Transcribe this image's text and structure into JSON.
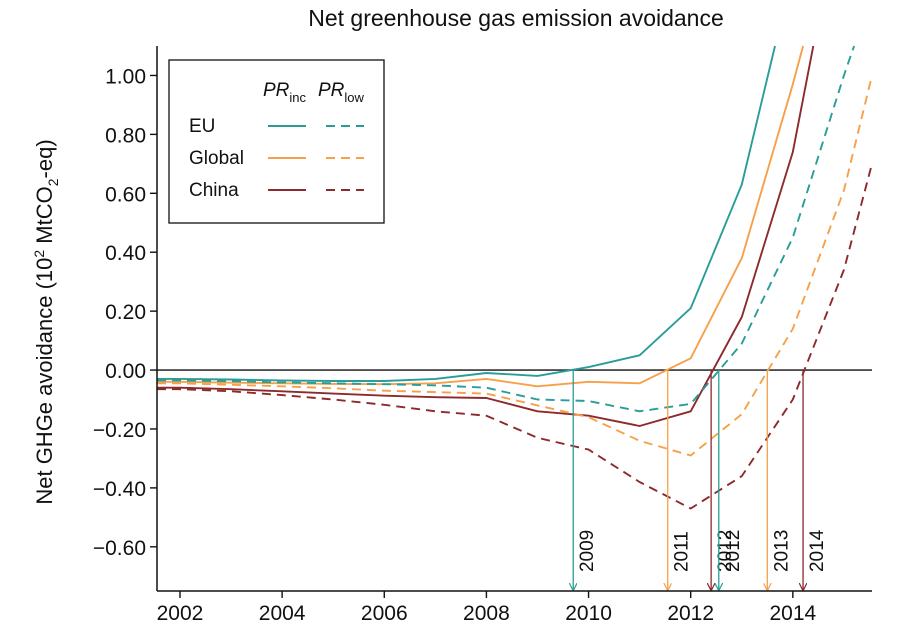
{
  "chart_data": {
    "type": "line",
    "title": "Net greenhouse gas emission avoidance",
    "xlabel": "",
    "ylabel": "Net GHGe avoidance (10² MtCO₂-eq)",
    "ylabel_parts": {
      "pre": "Net GHGe avoidance (10",
      "sup": "2",
      "mid": " MtCO",
      "sub": "2",
      "post": "-eq)"
    },
    "xlim": [
      2001.55,
      2015.55
    ],
    "ylim": [
      -0.75,
      1.1
    ],
    "xticks": [
      2002,
      2004,
      2006,
      2008,
      2010,
      2012,
      2014
    ],
    "xtick_labels": [
      "2002",
      "2004",
      "2006",
      "2008",
      "2010",
      "2012",
      "2014"
    ],
    "yticks": [
      -0.6,
      -0.4,
      -0.2,
      0.0,
      0.2,
      0.4,
      0.6,
      0.8,
      1.0
    ],
    "ytick_labels": [
      "−0.60",
      "−0.40",
      "−0.20",
      "0.00",
      "0.20",
      "0.40",
      "0.60",
      "0.80",
      "1.00"
    ],
    "zero_line": 0,
    "colors": {
      "eu": "#2a9d98",
      "global": "#f7a04a",
      "china": "#8c2a2c"
    },
    "legend": {
      "position": "top-left",
      "col1": {
        "base": "PR",
        "sub": "inc"
      },
      "col2": {
        "base": "PR",
        "sub": "low"
      },
      "entries": [
        "EU",
        "Global",
        "China"
      ]
    },
    "series": [
      {
        "name": "EU PR_inc",
        "region": "eu",
        "style": "solid",
        "x": [
          2001.55,
          2002,
          2003,
          2004,
          2005,
          2006,
          2007,
          2008,
          2009,
          2010,
          2011,
          2012,
          2013,
          2013.65
        ],
        "y": [
          -0.03,
          -0.03,
          -0.032,
          -0.035,
          -0.037,
          -0.037,
          -0.03,
          -0.01,
          -0.02,
          0.01,
          0.05,
          0.21,
          0.63,
          1.1
        ]
      },
      {
        "name": "Global PR_inc",
        "region": "global",
        "style": "solid",
        "x": [
          2001.55,
          2002,
          2003,
          2004,
          2005,
          2006,
          2007,
          2008,
          2009,
          2010,
          2011,
          2012,
          2013,
          2014,
          2014.2
        ],
        "y": [
          -0.04,
          -0.04,
          -0.043,
          -0.045,
          -0.047,
          -0.048,
          -0.045,
          -0.03,
          -0.055,
          -0.04,
          -0.045,
          0.04,
          0.38,
          0.97,
          1.1
        ]
      },
      {
        "name": "China PR_inc",
        "region": "china",
        "style": "solid",
        "x": [
          2001.55,
          2002,
          2003,
          2004,
          2005,
          2006,
          2007,
          2008,
          2009,
          2010,
          2011,
          2012,
          2013,
          2014,
          2014.4
        ],
        "y": [
          -0.06,
          -0.06,
          -0.065,
          -0.072,
          -0.08,
          -0.087,
          -0.092,
          -0.095,
          -0.14,
          -0.155,
          -0.19,
          -0.14,
          0.18,
          0.74,
          1.1
        ]
      },
      {
        "name": "EU PR_low",
        "region": "eu",
        "style": "dashed",
        "x": [
          2001.55,
          2002,
          2003,
          2004,
          2005,
          2006,
          2007,
          2008,
          2009,
          2010,
          2011,
          2012,
          2013,
          2014,
          2015,
          2015.2
        ],
        "y": [
          -0.035,
          -0.035,
          -0.038,
          -0.042,
          -0.045,
          -0.048,
          -0.052,
          -0.06,
          -0.1,
          -0.105,
          -0.14,
          -0.115,
          0.09,
          0.45,
          1.0,
          1.1
        ]
      },
      {
        "name": "Global PR_low",
        "region": "global",
        "style": "dashed",
        "x": [
          2001.55,
          2002,
          2003,
          2004,
          2005,
          2006,
          2007,
          2008,
          2009,
          2010,
          2011,
          2012,
          2013,
          2014,
          2015,
          2015.55
        ],
        "y": [
          -0.045,
          -0.045,
          -0.05,
          -0.055,
          -0.062,
          -0.07,
          -0.075,
          -0.08,
          -0.12,
          -0.16,
          -0.24,
          -0.29,
          -0.15,
          0.14,
          0.61,
          1.0
        ]
      },
      {
        "name": "China PR_low",
        "region": "china",
        "style": "dashed",
        "x": [
          2001.55,
          2002,
          2003,
          2004,
          2005,
          2006,
          2007,
          2008,
          2009,
          2010,
          2011,
          2012,
          2013,
          2014,
          2015,
          2015.55
        ],
        "y": [
          -0.065,
          -0.065,
          -0.072,
          -0.085,
          -0.1,
          -0.118,
          -0.14,
          -0.155,
          -0.23,
          -0.27,
          -0.38,
          -0.47,
          -0.36,
          -0.1,
          0.34,
          0.7
        ]
      }
    ],
    "annotations": [
      {
        "label": "2009",
        "x": 2009.7,
        "color": "eu",
        "style": "solid"
      },
      {
        "label": "2011",
        "x": 2011.55,
        "color": "global",
        "style": "solid"
      },
      {
        "label": "2012",
        "x": 2012.4,
        "color": "china",
        "style": "solid"
      },
      {
        "label": "2012",
        "x": 2012.55,
        "color": "eu",
        "style": "dashed"
      },
      {
        "label": "2013",
        "x": 2013.5,
        "color": "global",
        "style": "dashed"
      },
      {
        "label": "2014",
        "x": 2014.2,
        "color": "china",
        "style": "dashed"
      }
    ]
  }
}
